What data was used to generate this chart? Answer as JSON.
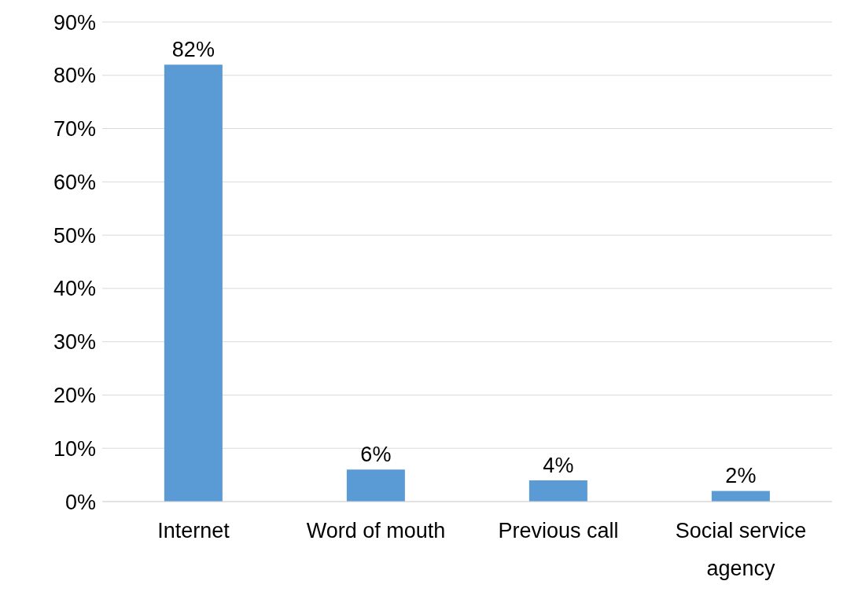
{
  "chart_data": {
    "type": "bar",
    "categories": [
      "Internet",
      "Word of mouth",
      "Previous call",
      "Social service agency"
    ],
    "values": [
      82,
      6,
      4,
      2
    ],
    "color": "#5b9bd5",
    "value_labels": [
      "82%",
      "6%",
      "4%",
      "2%"
    ],
    "ylim": [
      0,
      90
    ],
    "yticks": [
      {
        "value": 0,
        "label": "0%"
      },
      {
        "value": 10,
        "label": "10%"
      },
      {
        "value": 20,
        "label": "20%"
      },
      {
        "value": 30,
        "label": "30%"
      },
      {
        "value": 40,
        "label": "40%"
      },
      {
        "value": 50,
        "label": "50%"
      },
      {
        "value": 60,
        "label": "60%"
      },
      {
        "value": 70,
        "label": "70%"
      },
      {
        "value": 80,
        "label": "80%"
      },
      {
        "value": 90,
        "label": "90%"
      }
    ],
    "grid": "y"
  }
}
